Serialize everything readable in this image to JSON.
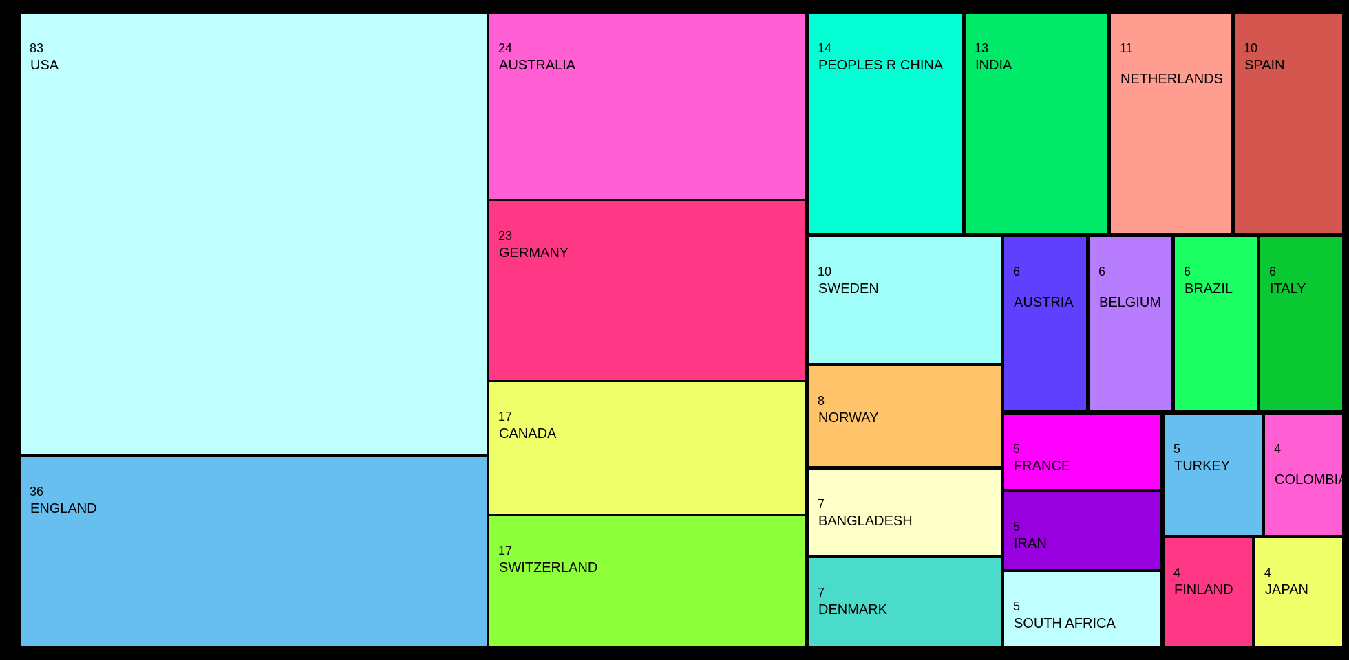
{
  "chart_data": {
    "type": "treemap",
    "items": [
      {
        "label": "USA",
        "value": 83,
        "color": "#BFFFFF"
      },
      {
        "label": "ENGLAND",
        "value": 36,
        "color": "#67BFEF"
      },
      {
        "label": "AUSTRALIA",
        "value": 24,
        "color": "#FF5FD2"
      },
      {
        "label": "GERMANY",
        "value": 23,
        "color": "#FF3885"
      },
      {
        "label": "CANADA",
        "value": 17,
        "color": "#EFFF69"
      },
      {
        "label": "SWITZERLAND",
        "value": 17,
        "color": "#8DFF3B"
      },
      {
        "label": "PEOPLES R CHINA",
        "value": 14,
        "color": "#04FFD4"
      },
      {
        "label": "INDIA",
        "value": 13,
        "color": "#00E969"
      },
      {
        "label": "NETHERLANDS",
        "value": 11,
        "color": "#FF9D91"
      },
      {
        "label": "SPAIN",
        "value": 10,
        "color": "#D4574F"
      },
      {
        "label": "SWEDEN",
        "value": 10,
        "color": "#9FFFF8"
      },
      {
        "label": "NORWAY",
        "value": 8,
        "color": "#FFC46A"
      },
      {
        "label": "BANGLADESH",
        "value": 7,
        "color": "#FFFFC8"
      },
      {
        "label": "DENMARK",
        "value": 7,
        "color": "#4BDBCB"
      },
      {
        "label": "AUSTRIA",
        "value": 6,
        "color": "#6040FF"
      },
      {
        "label": "BELGIUM",
        "value": 6,
        "color": "#B87DFF"
      },
      {
        "label": "BRAZIL",
        "value": 6,
        "color": "#1AFF62"
      },
      {
        "label": "ITALY",
        "value": 6,
        "color": "#0AC832"
      },
      {
        "label": "FRANCE",
        "value": 5,
        "color": "#FF00FF"
      },
      {
        "label": "IRAN",
        "value": 5,
        "color": "#9900E0"
      },
      {
        "label": "SOUTH AFRICA",
        "value": 5,
        "color": "#BFFFFF"
      },
      {
        "label": "TURKEY",
        "value": 5,
        "color": "#67BFEF"
      },
      {
        "label": "COLOMBIA",
        "value": 4,
        "color": "#FF5FD2"
      },
      {
        "label": "FINLAND",
        "value": 4,
        "color": "#FF3885"
      },
      {
        "label": "JAPAN",
        "value": 4,
        "color": "#EFFF69"
      }
    ]
  }
}
